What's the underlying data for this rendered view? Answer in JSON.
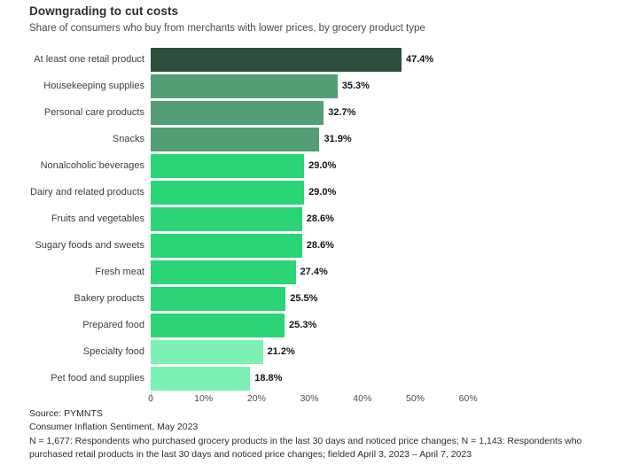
{
  "chart_data": {
    "type": "bar",
    "orientation": "horizontal",
    "title": "Downgrading to cut costs",
    "subtitle": "Share of consumers who buy from merchants with lower prices, by grocery product type",
    "categories": [
      "At least one retail product",
      "Housekeeping supplies",
      "Personal care products",
      "Snacks",
      "Nonalcoholic beverages",
      "Dairy and related products",
      "Fruits and vegetables",
      "Sugary foods and sweets",
      "Fresh meat",
      "Bakery products",
      "Prepared food",
      "Specialty food",
      "Pet food and supplies"
    ],
    "values": [
      47.4,
      35.3,
      32.7,
      31.9,
      29.0,
      29.0,
      28.6,
      28.6,
      27.4,
      25.5,
      25.3,
      21.2,
      18.8
    ],
    "value_labels": [
      "47.4%",
      "35.3%",
      "32.7%",
      "31.9%",
      "29.0%",
      "29.0%",
      "28.6%",
      "28.6%",
      "27.4%",
      "25.5%",
      "25.3%",
      "21.2%",
      "18.8%"
    ],
    "bar_colors": [
      "#2d4f3d",
      "#539e75",
      "#539e75",
      "#539e75",
      "#2bd474",
      "#2bd474",
      "#2bd474",
      "#2bd474",
      "#2bd474",
      "#2bd474",
      "#2bd474",
      "#7df0b3",
      "#7df0b3"
    ],
    "xlabel": "",
    "ylabel": "",
    "xlim": [
      0,
      60
    ],
    "x_ticks": [
      "0",
      "10%",
      "20%",
      "30%",
      "40%",
      "50%",
      "60%"
    ],
    "x_tick_values": [
      0,
      10,
      20,
      30,
      40,
      50,
      60
    ],
    "grid": false,
    "legend": false,
    "value_labels_shown": true
  },
  "footer": {
    "lines": [
      "Source: PYMNTS",
      "Consumer Inflation Sentiment, May 2023",
      "N = 1,677: Respondents who purchased grocery products in the last 30 days and noticed price changes; N = 1,143: Respondents who purchased retail products in the last 30 days and noticed price changes; fielded April 3, 2023 – April 7, 2023"
    ]
  }
}
